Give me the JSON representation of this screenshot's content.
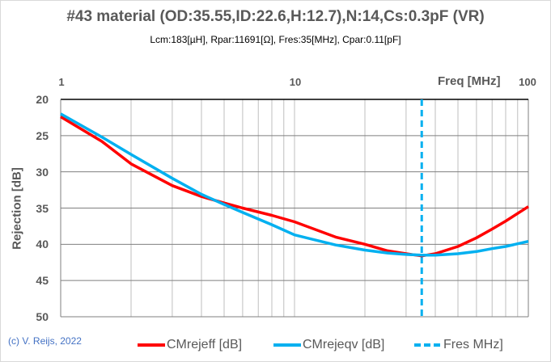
{
  "chart_data": {
    "type": "line",
    "title": "#43 material  (OD:35.55,ID:22.6,H:12.7),N:14,Cs:0.3pF (VR)",
    "subtitle": "Lcm:183[µH],  Rpar:11691[Ω],  Fres:35[MHz],  Cpar:0.11[pF]",
    "xlabel": "Freq [MHz]",
    "ylabel": "Rejection [dB]",
    "xscale": "log",
    "xlim": [
      1,
      100
    ],
    "ylim": [
      20,
      50
    ],
    "y_inverted": true,
    "x_ticks": [
      "1",
      "10",
      "100"
    ],
    "y_ticks": [
      "20",
      "25",
      "30",
      "35",
      "40",
      "45",
      "50"
    ],
    "grid": true,
    "legend_position": "bottom",
    "x": [
      1,
      1.5,
      2,
      3,
      4,
      5,
      6,
      8,
      10,
      15,
      20,
      25,
      30,
      35,
      40,
      50,
      60,
      70,
      80,
      100
    ],
    "series": [
      {
        "name": "CMrejeff [dB]",
        "color": "#ff0000",
        "values": [
          22.4,
          25.8,
          28.9,
          31.9,
          33.4,
          34.3,
          35.0,
          36.0,
          36.9,
          39.0,
          40.0,
          40.9,
          41.3,
          41.6,
          41.3,
          40.3,
          39.1,
          37.9,
          36.8,
          34.8
        ]
      },
      {
        "name": "CMrejeqv [dB]",
        "color": "#00b0f0",
        "values": [
          22.0,
          25.2,
          27.6,
          30.9,
          33.1,
          34.5,
          35.6,
          37.3,
          38.7,
          40.1,
          40.8,
          41.2,
          41.4,
          41.5,
          41.5,
          41.3,
          41.0,
          40.6,
          40.3,
          39.6
        ]
      },
      {
        "name": "Fres MHz]",
        "color": "#00b0f0",
        "style": "dashed",
        "vertical_line_x": 35
      }
    ],
    "annotations": [
      "(c) V. Reijs, 2022"
    ]
  },
  "legend": {
    "items": [
      "CMrejeff [dB]",
      "CMrejeqv [dB]",
      "Fres MHz]"
    ]
  },
  "copyright": "(c) V. Reijs, 2022"
}
